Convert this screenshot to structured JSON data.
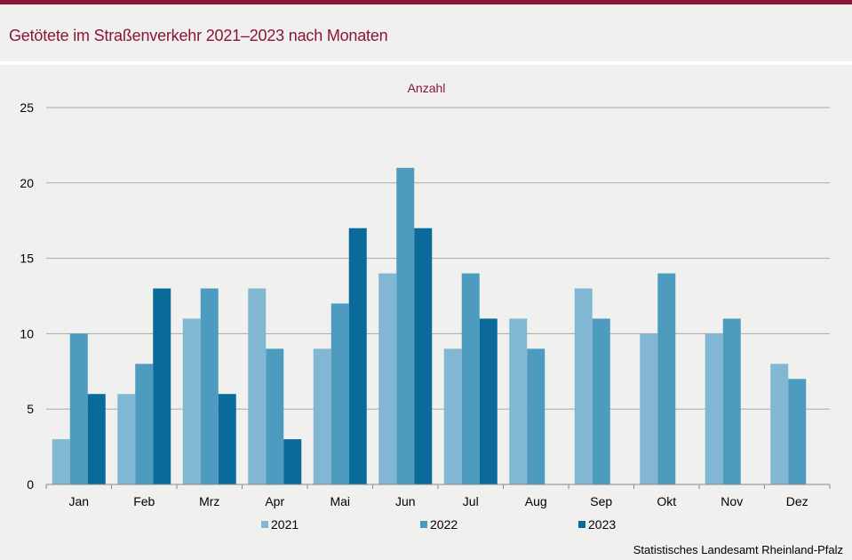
{
  "title": "Getötete im Straßenverkehr 2021–2023 nach Monaten",
  "source": "Statistisches Landesamt  Rheinland-Pfalz",
  "chart_data": {
    "type": "bar",
    "ylabel": "Anzahl",
    "ylim": [
      0,
      25
    ],
    "yticks": [
      0,
      5,
      10,
      15,
      20,
      25
    ],
    "grid": true,
    "legend": "bottom",
    "categories": [
      "Jan",
      "Feb",
      "Mrz",
      "Apr",
      "Mai",
      "Jun",
      "Jul",
      "Aug",
      "Sep",
      "Okt",
      "Nov",
      "Dez"
    ],
    "series": [
      {
        "name": "2021",
        "color": "#82b7d3",
        "values": [
          3,
          6,
          11,
          13,
          9,
          14,
          9,
          11,
          13,
          10,
          10,
          8
        ]
      },
      {
        "name": "2022",
        "color": "#4d9cc0",
        "values": [
          10,
          8,
          13,
          9,
          12,
          21,
          14,
          9,
          11,
          14,
          11,
          7
        ]
      },
      {
        "name": "2023",
        "color": "#0a6b9a",
        "values": [
          6,
          13,
          6,
          3,
          17,
          17,
          11,
          null,
          null,
          null,
          null,
          null
        ]
      }
    ]
  }
}
